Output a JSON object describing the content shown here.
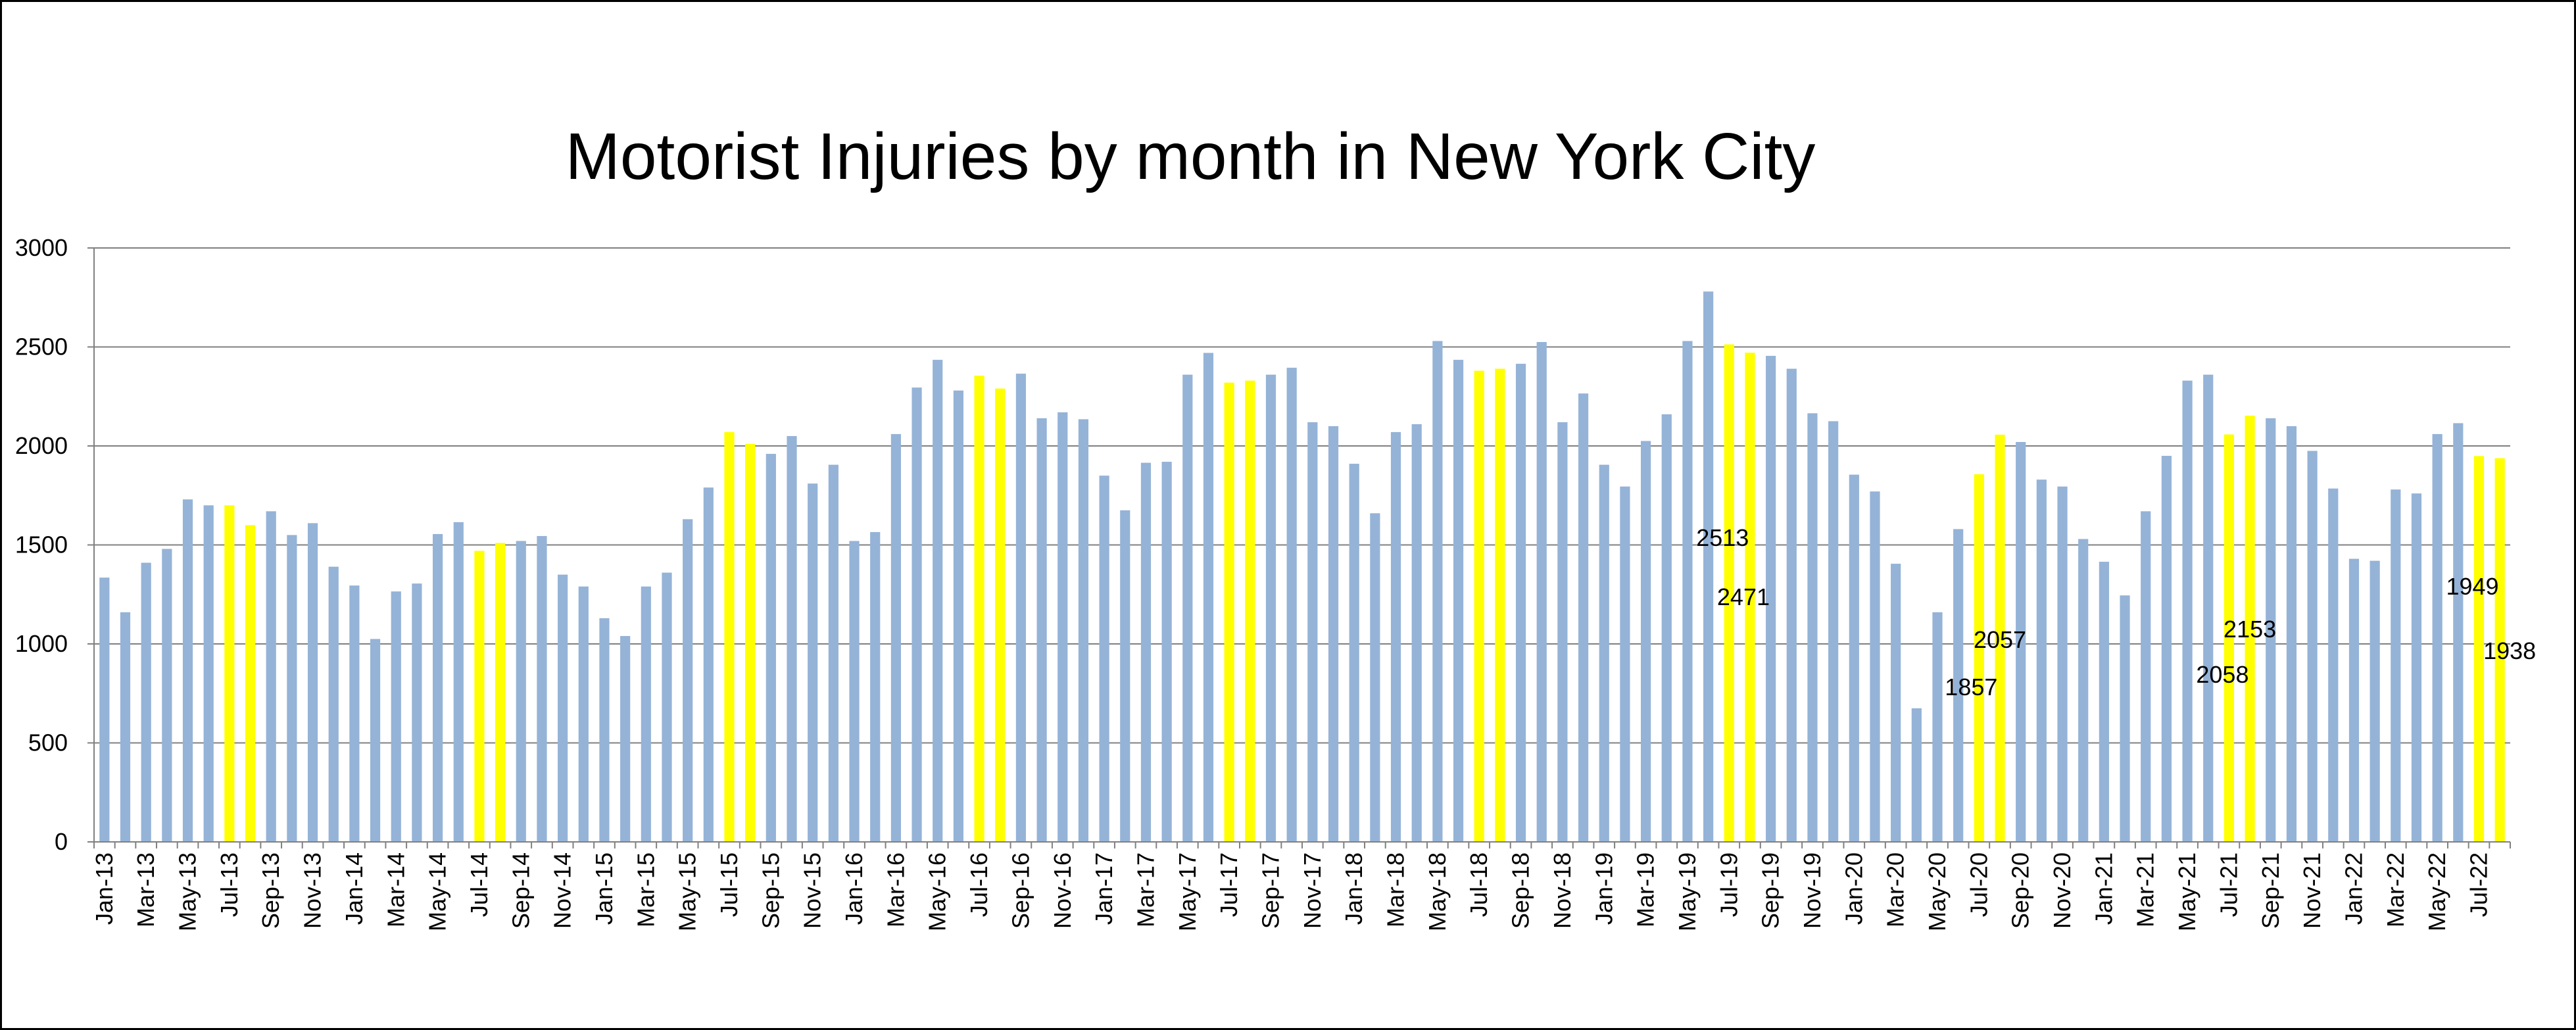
{
  "chart_data": {
    "type": "bar",
    "title": "Motorist Injuries by month in New York City",
    "xlabel": "",
    "ylabel": "",
    "ylim": [
      0,
      3000
    ],
    "yticks": [
      0,
      500,
      1000,
      1500,
      2000,
      2500,
      3000
    ],
    "grid": true,
    "legend": "none",
    "colors": {
      "default": "#95B3D7",
      "highlight": "#FFFF00",
      "grid": "#808080",
      "axis": "#808080"
    },
    "categories": [
      "Jan-13",
      "Feb-13",
      "Mar-13",
      "Apr-13",
      "May-13",
      "Jun-13",
      "Jul-13",
      "Aug-13",
      "Sep-13",
      "Oct-13",
      "Nov-13",
      "Dec-13",
      "Jan-14",
      "Feb-14",
      "Mar-14",
      "Apr-14",
      "May-14",
      "Jun-14",
      "Jul-14",
      "Aug-14",
      "Sep-14",
      "Oct-14",
      "Nov-14",
      "Dec-14",
      "Jan-15",
      "Feb-15",
      "Mar-15",
      "Apr-15",
      "May-15",
      "Jun-15",
      "Jul-15",
      "Aug-15",
      "Sep-15",
      "Oct-15",
      "Nov-15",
      "Dec-15",
      "Jan-16",
      "Feb-16",
      "Mar-16",
      "Apr-16",
      "May-16",
      "Jun-16",
      "Jul-16",
      "Aug-16",
      "Sep-16",
      "Oct-16",
      "Nov-16",
      "Dec-16",
      "Jan-17",
      "Feb-17",
      "Mar-17",
      "Apr-17",
      "May-17",
      "Jun-17",
      "Jul-17",
      "Aug-17",
      "Sep-17",
      "Oct-17",
      "Nov-17",
      "Dec-17",
      "Jan-18",
      "Feb-18",
      "Mar-18",
      "Apr-18",
      "May-18",
      "Jun-18",
      "Jul-18",
      "Aug-18",
      "Sep-18",
      "Oct-18",
      "Nov-18",
      "Dec-18",
      "Jan-19",
      "Feb-19",
      "Mar-19",
      "Apr-19",
      "May-19",
      "Jun-19",
      "Jul-19",
      "Aug-19",
      "Sep-19",
      "Oct-19",
      "Nov-19",
      "Dec-19",
      "Jan-20",
      "Feb-20",
      "Mar-20",
      "Apr-20",
      "May-20",
      "Jun-20",
      "Jul-20",
      "Aug-20",
      "Sep-20",
      "Oct-20",
      "Nov-20",
      "Dec-20",
      "Jan-21",
      "Feb-21",
      "Mar-21",
      "Apr-21",
      "May-21",
      "Jun-21",
      "Jul-21",
      "Aug-21",
      "Sep-21",
      "Oct-21",
      "Nov-21",
      "Dec-21",
      "Jan-22",
      "Feb-22",
      "Mar-22",
      "Apr-22",
      "May-22",
      "Jun-22",
      "Jul-22",
      "Aug-22"
    ],
    "values": [
      1335,
      1160,
      1410,
      1480,
      1730,
      1700,
      1700,
      1600,
      1670,
      1550,
      1610,
      1390,
      1295,
      1025,
      1265,
      1305,
      1555,
      1615,
      1470,
      1510,
      1520,
      1545,
      1350,
      1290,
      1130,
      1040,
      1290,
      1360,
      1630,
      1790,
      2070,
      2010,
      1960,
      2050,
      1810,
      1905,
      1520,
      1565,
      2060,
      2295,
      2435,
      2280,
      2355,
      2290,
      2365,
      2140,
      2170,
      2135,
      1850,
      1675,
      1915,
      1920,
      2360,
      2470,
      2320,
      2330,
      2360,
      2395,
      2120,
      2100,
      1910,
      1660,
      2070,
      2110,
      2530,
      2435,
      2380,
      2390,
      2415,
      2525,
      2120,
      2265,
      1905,
      1795,
      2025,
      2160,
      2530,
      2780,
      2513,
      2471,
      2455,
      2390,
      2165,
      2125,
      1855,
      1770,
      1405,
      675,
      1160,
      1580,
      1857,
      2057,
      2020,
      1830,
      1795,
      1530,
      1415,
      1245,
      1670,
      1950,
      2330,
      2360,
      2058,
      2153,
      2140,
      2100,
      1975,
      1785,
      1430,
      1420,
      1780,
      1760,
      2060,
      2115,
      1949,
      1938
    ],
    "highlighted": [
      "Jul-13",
      "Aug-13",
      "Jul-14",
      "Aug-14",
      "Jul-15",
      "Aug-15",
      "Jul-16",
      "Aug-16",
      "Jul-17",
      "Aug-17",
      "Jul-18",
      "Aug-18",
      "Jul-19",
      "Aug-19",
      "Jul-20",
      "Aug-20",
      "Jul-21",
      "Aug-21",
      "Jul-22",
      "Aug-22"
    ],
    "tick_labels": [
      "Jan-13",
      "Mar-13",
      "May-13",
      "Jul-13",
      "Sep-13",
      "Nov-13",
      "Jan-14",
      "Mar-14",
      "May-14",
      "Jul-14",
      "Sep-14",
      "Nov-14",
      "Jan-15",
      "Mar-15",
      "May-15",
      "Jul-15",
      "Sep-15",
      "Nov-15",
      "Jan-16",
      "Mar-16",
      "May-16",
      "Jul-16",
      "Sep-16",
      "Nov-16",
      "Jan-17",
      "Mar-17",
      "May-17",
      "Jul-17",
      "Sep-17",
      "Nov-17",
      "Jan-18",
      "Mar-18",
      "May-18",
      "Jul-18",
      "Sep-18",
      "Nov-18",
      "Jan-19",
      "Mar-19",
      "May-19",
      "Jul-19",
      "Sep-19",
      "Nov-19",
      "Jan-20",
      "Mar-20",
      "May-20",
      "Jul-20",
      "Sep-20",
      "Nov-20",
      "Jan-21",
      "Mar-21",
      "May-21",
      "Jul-21",
      "Sep-21",
      "Nov-21",
      "Jan-22",
      "Mar-22",
      "May-22",
      "Jul-22"
    ],
    "data_labels": [
      {
        "category": "Jul-19",
        "text": "2513"
      },
      {
        "category": "Aug-19",
        "text": "2471"
      },
      {
        "category": "Jul-20",
        "text": "1857"
      },
      {
        "category": "Aug-20",
        "text": "2057"
      },
      {
        "category": "Jul-21",
        "text": "2058"
      },
      {
        "category": "Aug-21",
        "text": "2153"
      },
      {
        "category": "Jul-22",
        "text": "1949"
      },
      {
        "category": "Aug-22",
        "text": "1938"
      }
    ]
  }
}
